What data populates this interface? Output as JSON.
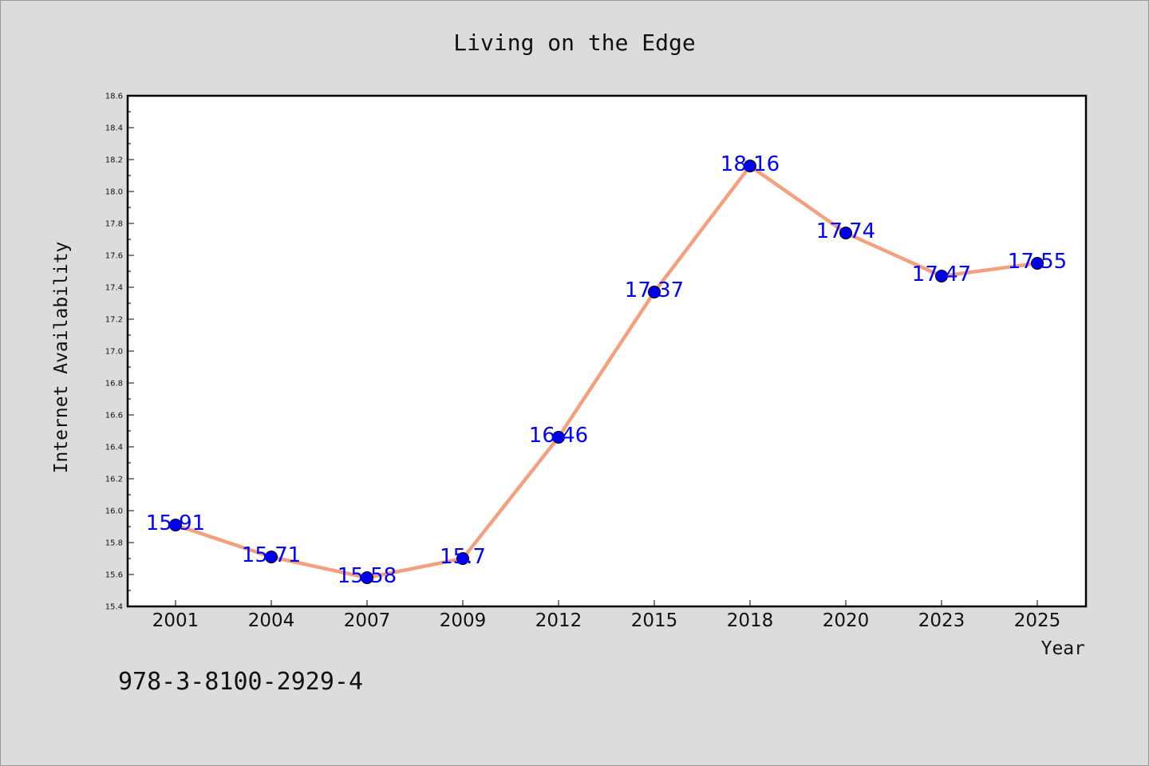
{
  "chart_data": {
    "type": "line",
    "title": "Living on the Edge",
    "xlabel": "Year",
    "ylabel": "Internet Availability",
    "categories": [
      "2001",
      "2004",
      "2007",
      "2009",
      "2012",
      "2015",
      "2018",
      "2020",
      "2023",
      "2025"
    ],
    "values": [
      15.91,
      15.71,
      15.58,
      15.7,
      16.46,
      17.37,
      18.16,
      17.74,
      17.47,
      17.55
    ],
    "data_labels": [
      "15.91",
      "15.71",
      "15.58",
      "15.7",
      "16.46",
      "17.37",
      "18.16",
      "17.74",
      "17.47",
      "17.55"
    ],
    "ylim": [
      15.4,
      18.6
    ],
    "yticks": [
      "15.4",
      "15.6",
      "15.8",
      "16.0",
      "16.2",
      "16.4",
      "16.6",
      "16.8",
      "17.0",
      "17.2",
      "17.4",
      "17.6",
      "17.8",
      "18.0",
      "18.2",
      "18.4",
      "18.6"
    ],
    "grid": false,
    "line_color": "#f4a07f",
    "marker_color": "#0000ee",
    "label_color": "#0000ff"
  },
  "annotation": "978-3-8100-2929-4"
}
